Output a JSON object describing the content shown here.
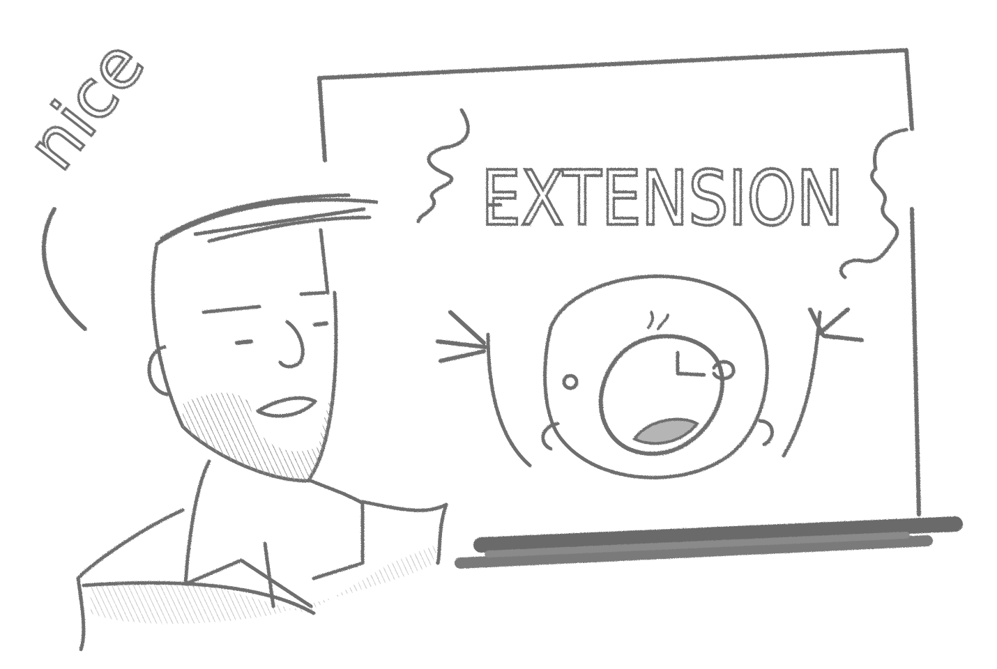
{
  "sketch": {
    "speech_word": "nice",
    "board_heading": "EXTENSION"
  },
  "colors": {
    "pencil": "#6e6e6e",
    "shade": "#8a8a8a",
    "paper": "#ffffff"
  }
}
